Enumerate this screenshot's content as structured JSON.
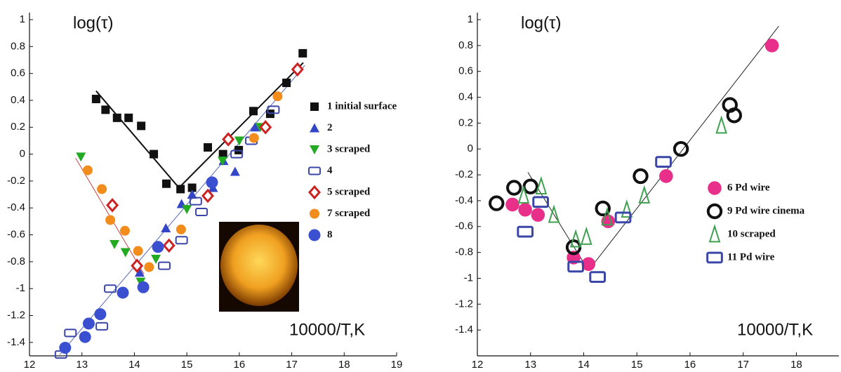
{
  "chart_data": [
    {
      "type": "scatter",
      "ylabel": "log(τ)",
      "xlabel": "10000/T,K",
      "xlim": [
        12,
        19
      ],
      "ylim": [
        -1.5,
        1
      ],
      "xticks": [
        12,
        13,
        14,
        15,
        16,
        17,
        18,
        19
      ],
      "yticks": [
        1,
        0.8,
        0.6,
        0.4,
        0.2,
        0,
        -0.2,
        -0.4,
        -0.6,
        -0.8,
        -1,
        -1.2,
        -1.4
      ],
      "series": [
        {
          "name": "1  initial surface",
          "color": "#111111",
          "marker": "square",
          "x": [
            13.27,
            13.45,
            13.67,
            13.89,
            14.13,
            14.37,
            14.61,
            14.88,
            15.1,
            15.4,
            15.69,
            15.99,
            16.27,
            16.59,
            16.9,
            17.21
          ],
          "y": [
            0.41,
            0.33,
            0.27,
            0.27,
            0.21,
            0,
            -0.22,
            -0.26,
            -0.25,
            0.05,
            0,
            0.03,
            0.32,
            0.3,
            0.53,
            0.75
          ]
        },
        {
          "name": "2",
          "color": "#3346c8",
          "marker": "triangle-up",
          "x": [
            14.1,
            14.6,
            14.9,
            15.1,
            15.5,
            15.7,
            15.92,
            16.3
          ],
          "y": [
            -0.88,
            -0.55,
            -0.37,
            -0.3,
            -0.25,
            -0.05,
            -0.13,
            0.2
          ]
        },
        {
          "name": "3 scraped",
          "color": "#22aa22",
          "marker": "triangle-down",
          "x": [
            12.98,
            13.62,
            13.83,
            14.12,
            14.41,
            15.0,
            15.68,
            16.0,
            16.4
          ],
          "y": [
            -0.02,
            -0.67,
            -0.73,
            -0.95,
            -0.78,
            -0.41,
            -0.05,
            0.1,
            0.2
          ]
        },
        {
          "name": "4",
          "color": "#3a46a8",
          "marker": "rect-open",
          "x": [
            12.6,
            12.78,
            13.38,
            13.54,
            14.57,
            14.9,
            15.17,
            15.28,
            15.95,
            16.23,
            16.65
          ],
          "y": [
            -1.49,
            -1.33,
            -1.28,
            -1.0,
            -0.83,
            -0.64,
            -0.35,
            -0.43,
            0.0,
            0.1,
            0.33
          ]
        },
        {
          "name": "5 scraped",
          "color": "#cc2222",
          "marker": "diamond",
          "x": [
            13.58,
            14.05,
            14.66,
            15.4,
            15.79,
            16.5,
            17.11
          ],
          "y": [
            -0.38,
            -0.83,
            -0.68,
            -0.31,
            0.11,
            0.2,
            0.63
          ]
        },
        {
          "name": "7 scraped",
          "color": "#f28c1c",
          "marker": "circle",
          "x": [
            13.11,
            13.38,
            13.54,
            13.82,
            14.07,
            14.28,
            14.89,
            16.28,
            16.73
          ],
          "y": [
            -0.12,
            -0.26,
            -0.49,
            -0.57,
            -0.72,
            -0.84,
            -0.56,
            0.12,
            0.43
          ]
        },
        {
          "name": "8",
          "color": "#3a50d0",
          "marker": "circle-big",
          "x": [
            12.68,
            13.06,
            13.13,
            13.35,
            13.78,
            14.17,
            14.45,
            15.48
          ],
          "y": [
            -1.44,
            -1.36,
            -1.26,
            -1.19,
            -1.03,
            -0.99,
            -0.69,
            -0.21
          ]
        }
      ],
      "trend_lines": [
        {
          "color": "#111111",
          "x": [
            13.27,
            14.85,
            17.22
          ],
          "y": [
            0.47,
            -0.25,
            0.68
          ]
        },
        {
          "color": "#cc4444",
          "x": [
            12.88,
            14.18
          ],
          "y": [
            -0.03,
            -0.89
          ]
        },
        {
          "color": "#5566bb",
          "x": [
            12.58,
            17.25
          ],
          "y": [
            -1.49,
            0.66
          ]
        }
      ]
    },
    {
      "type": "scatter",
      "ylabel": "log(τ)",
      "xlabel": "10000/T,K",
      "xlim": [
        12,
        18.8
      ],
      "ylim": [
        -1.6,
        1
      ],
      "xticks": [
        12,
        13,
        14,
        15,
        16,
        17,
        18
      ],
      "yticks": [
        1,
        0.8,
        0.6,
        0.4,
        0.2,
        0,
        -0.2,
        -0.4,
        -0.6,
        -0.8,
        -1,
        -1.2,
        -1.4
      ],
      "series": [
        {
          "name": "6  Pd wire",
          "color": "#e8308a",
          "marker": "circle-big",
          "x": [
            12.66,
            12.9,
            13.14,
            13.81,
            14.09,
            14.46,
            15.55,
            17.54
          ],
          "y": [
            -0.43,
            -0.47,
            -0.51,
            -0.84,
            -0.89,
            -0.56,
            -0.21,
            0.8
          ]
        },
        {
          "name": "9  Pd wire cinema",
          "color": "#111111",
          "marker": "circle-open",
          "x": [
            12.36,
            12.69,
            13.0,
            13.81,
            14.36,
            15.07,
            15.83,
            16.75,
            16.83
          ],
          "y": [
            -0.42,
            -0.3,
            -0.29,
            -0.76,
            -0.46,
            -0.21,
            0.0,
            0.34,
            0.26
          ]
        },
        {
          "name": "10 scraped",
          "color": "#3fa14f",
          "marker": "triangle-open",
          "x": [
            12.87,
            13.2,
            13.44,
            13.85,
            14.05,
            14.44,
            14.81,
            15.14,
            16.59
          ],
          "y": [
            -0.36,
            -0.29,
            -0.51,
            -0.7,
            -0.68,
            -0.53,
            -0.47,
            -0.36,
            0.18
          ]
        },
        {
          "name": "11 Pd wire",
          "color": "#3a46a8",
          "marker": "rect-open-big",
          "x": [
            12.9,
            13.19,
            13.85,
            14.26,
            14.74,
            15.5
          ],
          "y": [
            -0.64,
            -0.41,
            -0.91,
            -0.99,
            -0.53,
            -0.1
          ]
        }
      ],
      "trend_lines": [
        {
          "color": "#222222",
          "x": [
            12.95,
            14.09,
            17.67
          ],
          "y": [
            -0.18,
            -0.94,
            0.95
          ]
        }
      ]
    }
  ]
}
